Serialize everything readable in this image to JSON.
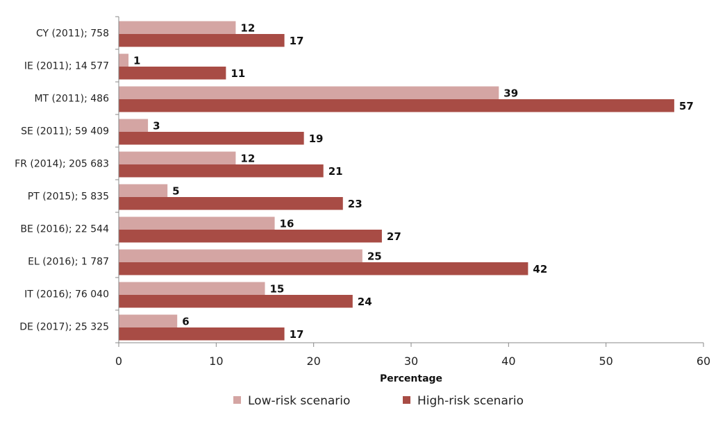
{
  "chart_data": {
    "type": "bar",
    "orientation": "horizontal",
    "categories": [
      "CY (2011); 758",
      "IE (2011); 14 577",
      "MT (2011); 486",
      "SE (2011); 59 409",
      "FR (2014); 205 683",
      "PT (2015); 5 835",
      "BE (2016); 22 544",
      "EL (2016); 1 787",
      "IT (2016); 76 040",
      "DE (2017); 25 325"
    ],
    "series": [
      {
        "name": "Low-risk scenario",
        "color": "#d4a5a3",
        "values": [
          12,
          1,
          39,
          3,
          12,
          5,
          16,
          25,
          15,
          6
        ]
      },
      {
        "name": "High-risk scenario",
        "color": "#a84c45",
        "values": [
          17,
          11,
          57,
          19,
          21,
          23,
          27,
          42,
          24,
          17
        ]
      }
    ],
    "xlabel": "Percentage",
    "xlim": [
      0,
      60
    ],
    "xticks": [
      0,
      10,
      20,
      30,
      40,
      50,
      60
    ],
    "grid": false,
    "legend_position": "bottom"
  }
}
